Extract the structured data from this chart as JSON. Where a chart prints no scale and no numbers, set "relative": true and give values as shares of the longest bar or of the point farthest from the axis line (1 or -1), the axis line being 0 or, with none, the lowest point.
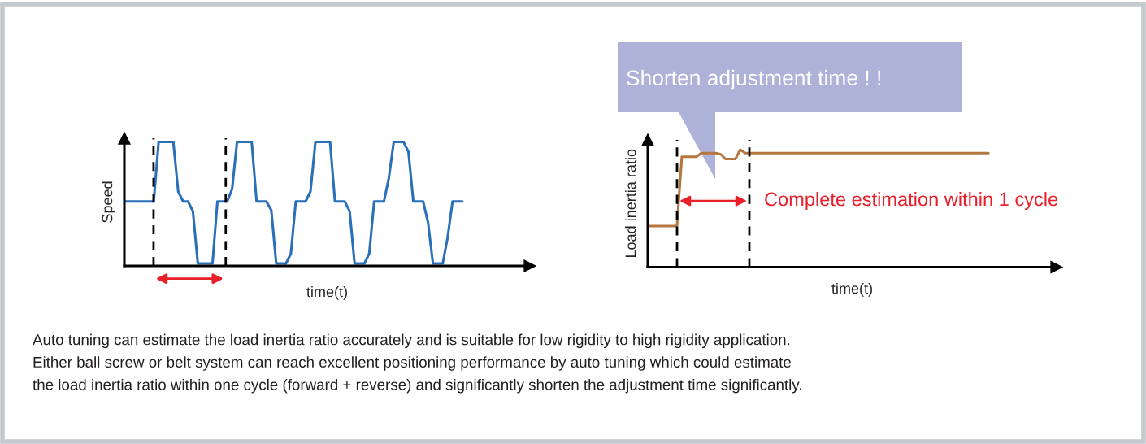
{
  "chart_data": [
    {
      "type": "line",
      "relative": true,
      "xlabel": "time(t)",
      "ylabel": "Speed",
      "categories": [
        null,
        null,
        null,
        null,
        null,
        null,
        null,
        null,
        null,
        null,
        null,
        null,
        null,
        null,
        null,
        null,
        null,
        null,
        null,
        null,
        null,
        null,
        null,
        null,
        null,
        null,
        null,
        null,
        null,
        null,
        null,
        null,
        null,
        null,
        null,
        null,
        null,
        null,
        null,
        null,
        null,
        null,
        null,
        null,
        null,
        null,
        null,
        null,
        null,
        null,
        null,
        null,
        null,
        null,
        null,
        null,
        null,
        null,
        null,
        null,
        null,
        null,
        null,
        null,
        null,
        null,
        null,
        null,
        null,
        null
      ],
      "series": [
        {
          "color": "#2a70b8",
          "values": [
            0.52,
            0.52,
            0.52,
            0.52,
            0.52,
            0.52,
            0.52,
            1,
            1,
            1,
            1,
            0.6,
            0.52,
            0.52,
            0.44,
            0.02,
            0.02,
            0.02,
            0.02,
            0.52,
            0.52,
            0.52,
            0.62,
            1,
            1,
            1,
            1,
            0.52,
            0.52,
            0.52,
            0.45,
            0.02,
            0.02,
            0.02,
            0.1,
            0.52,
            0.52,
            0.52,
            0.6,
            1,
            1,
            1,
            1,
            0.52,
            0.52,
            0.52,
            0.44,
            0.02,
            0.02,
            0.02,
            0.1,
            0.52,
            0.52,
            0.52,
            0.71,
            1,
            1,
            1,
            0.92,
            0.52,
            0.52,
            0.52,
            0.35,
            0.02,
            0.02,
            0.02,
            0.23,
            0.52,
            0.52,
            0.52
          ]
        }
      ],
      "line_style": "solid"
    },
    {
      "type": "line",
      "relative": true,
      "xlabel": "time(t)",
      "ylabel": "Load inertia ratio",
      "categories": [
        null,
        null,
        null,
        null,
        null,
        null,
        null,
        null,
        null,
        null,
        null,
        null,
        null,
        null,
        null,
        null,
        null,
        null,
        null,
        null,
        null,
        null,
        null,
        null,
        null,
        null,
        null,
        null,
        null,
        null,
        null,
        null,
        null,
        null,
        null,
        null,
        null,
        null,
        null,
        null,
        null,
        null,
        null,
        null,
        null,
        null,
        null,
        null,
        null,
        null,
        null,
        null,
        null,
        null,
        null,
        null,
        null,
        null,
        null,
        null,
        null,
        null,
        null,
        null,
        null,
        null,
        null,
        null,
        null,
        null,
        null
      ],
      "series": [
        {
          "color": "#b5773f",
          "values": [
            0.35,
            0.35,
            0.35,
            0.35,
            0.35,
            0.35,
            0.35,
            0.94,
            0.94,
            0.94,
            0.94,
            0.97,
            0.97,
            0.97,
            0.97,
            0.96,
            0.92,
            0.92,
            0.92,
            1,
            0.97,
            0.97,
            0.97,
            0.97,
            0.97,
            0.97,
            0.97,
            0.97,
            0.97,
            0.97,
            0.97,
            0.97,
            0.97,
            0.97,
            0.97,
            0.97,
            0.97,
            0.97,
            0.97,
            0.97,
            0.97,
            0.97,
            0.97,
            0.97,
            0.97,
            0.97,
            0.97,
            0.97,
            0.97,
            0.97,
            0.97,
            0.97,
            0.97,
            0.97,
            0.97,
            0.97,
            0.97,
            0.97,
            0.97,
            0.97,
            0.97,
            0.97,
            0.97,
            0.97,
            0.97,
            0.97,
            0.97,
            0.97,
            0.97,
            0.97,
            0.97
          ]
        }
      ],
      "line_style": "solid",
      "annotations": [
        "Shorten adjustment time ! !",
        "Complete estimation within 1 cycle",
        "Auto tuning can estimate the load inertia ratio accurately and is suitable for low rigidity to high rigidity application.\nEither ball screw or belt system can reach excellent positioning performance by auto tuning which could estimate\nthe load inertia ratio within one cycle (forward + reverse) and significantly shorten the adjustment time significantly."
      ]
    }
  ]
}
